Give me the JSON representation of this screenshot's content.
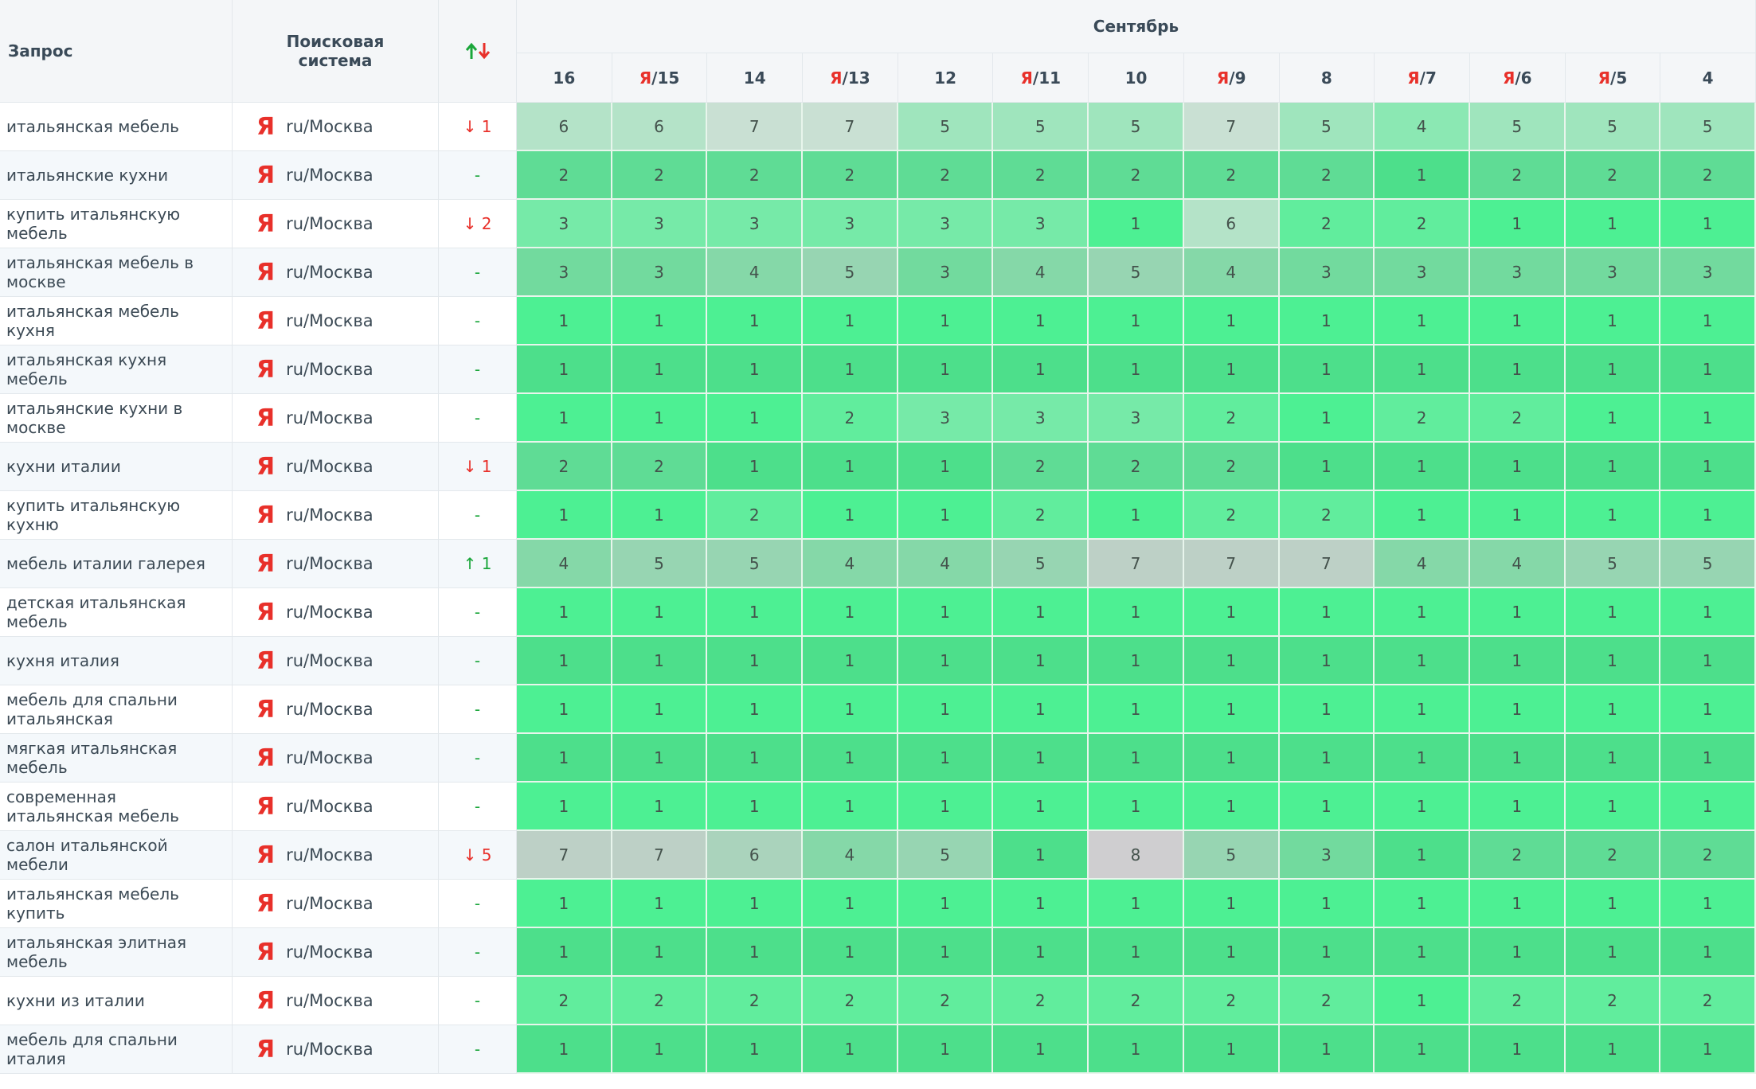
{
  "header": {
    "query": "Запрос",
    "engine": "Поисковая система",
    "month": "Сентябрь",
    "columns": [
      {
        "label": "16"
      },
      {
        "prefix": "Я",
        "label": "/15"
      },
      {
        "label": "14"
      },
      {
        "prefix": "Я",
        "label": "/13"
      },
      {
        "label": "12"
      },
      {
        "prefix": "Я",
        "label": "/11"
      },
      {
        "label": "10"
      },
      {
        "prefix": "Я",
        "label": "/9"
      },
      {
        "label": "8"
      },
      {
        "prefix": "Я",
        "label": "/7"
      },
      {
        "prefix": "Я",
        "label": "/6"
      },
      {
        "prefix": "Я",
        "label": "/5"
      },
      {
        "label": "4"
      }
    ]
  },
  "table": {
    "rows": [
      {
        "query": "итальянская мебель",
        "icon": "Я",
        "region": "ru/Москва",
        "change": "↓ 1",
        "values": [
          6,
          6,
          7,
          7,
          5,
          5,
          5,
          7,
          5,
          4,
          5,
          5,
          5
        ]
      },
      {
        "query": "итальянские кухни",
        "icon": "Я",
        "region": "ru/Москва",
        "change": "-",
        "values": [
          2,
          2,
          2,
          2,
          2,
          2,
          2,
          2,
          2,
          1,
          2,
          2,
          2
        ]
      },
      {
        "query": "купить итальянскую мебель",
        "icon": "Я",
        "region": "ru/Москва",
        "change": "↓ 2",
        "values": [
          3,
          3,
          3,
          3,
          3,
          3,
          1,
          6,
          2,
          2,
          1,
          1,
          1
        ]
      },
      {
        "query": "итальянская мебель в москве",
        "icon": "Я",
        "region": "ru/Москва",
        "change": "-",
        "values": [
          3,
          3,
          4,
          5,
          3,
          4,
          5,
          4,
          3,
          3,
          3,
          3,
          3
        ]
      },
      {
        "query": "итальянская мебель кухня",
        "icon": "Я",
        "region": "ru/Москва",
        "change": "-",
        "values": [
          1,
          1,
          1,
          1,
          1,
          1,
          1,
          1,
          1,
          1,
          1,
          1,
          1
        ]
      },
      {
        "query": "итальянская кухня мебель",
        "icon": "Я",
        "region": "ru/Москва",
        "change": "-",
        "values": [
          1,
          1,
          1,
          1,
          1,
          1,
          1,
          1,
          1,
          1,
          1,
          1,
          1
        ]
      },
      {
        "query": "итальянские кухни в москве",
        "icon": "Я",
        "region": "ru/Москва",
        "change": "-",
        "values": [
          1,
          1,
          1,
          2,
          3,
          3,
          3,
          2,
          1,
          2,
          2,
          1,
          1
        ]
      },
      {
        "query": "кухни италии",
        "icon": "Я",
        "region": "ru/Москва",
        "change": "↓ 1",
        "values": [
          2,
          2,
          1,
          1,
          1,
          2,
          2,
          2,
          1,
          1,
          1,
          1,
          1
        ]
      },
      {
        "query": "купить итальянскую кухню",
        "icon": "Я",
        "region": "ru/Москва",
        "change": "-",
        "values": [
          1,
          1,
          2,
          1,
          1,
          2,
          1,
          2,
          2,
          1,
          1,
          1,
          1
        ]
      },
      {
        "query": "мебель италии галерея",
        "icon": "Я",
        "region": "ru/Москва",
        "change": "↑ 1",
        "values": [
          4,
          5,
          5,
          4,
          4,
          5,
          7,
          7,
          7,
          4,
          4,
          5,
          5
        ]
      },
      {
        "query": "детская итальянская мебель",
        "icon": "Я",
        "region": "ru/Москва",
        "change": "-",
        "values": [
          1,
          1,
          1,
          1,
          1,
          1,
          1,
          1,
          1,
          1,
          1,
          1,
          1
        ]
      },
      {
        "query": "кухня италия",
        "icon": "Я",
        "region": "ru/Москва",
        "change": "-",
        "values": [
          1,
          1,
          1,
          1,
          1,
          1,
          1,
          1,
          1,
          1,
          1,
          1,
          1
        ]
      },
      {
        "query": "мебель для спальни итальянская",
        "icon": "Я",
        "region": "ru/Москва",
        "change": "-",
        "values": [
          1,
          1,
          1,
          1,
          1,
          1,
          1,
          1,
          1,
          1,
          1,
          1,
          1
        ]
      },
      {
        "query": "мягкая итальянская мебель",
        "icon": "Я",
        "region": "ru/Москва",
        "change": "-",
        "values": [
          1,
          1,
          1,
          1,
          1,
          1,
          1,
          1,
          1,
          1,
          1,
          1,
          1
        ]
      },
      {
        "query": "современная итальянская мебель",
        "icon": "Я",
        "region": "ru/Москва",
        "change": "-",
        "values": [
          1,
          1,
          1,
          1,
          1,
          1,
          1,
          1,
          1,
          1,
          1,
          1,
          1
        ]
      },
      {
        "query": "салон итальянской мебели",
        "icon": "Я",
        "region": "ru/Москва",
        "change": "↓ 5",
        "values": [
          7,
          7,
          6,
          4,
          5,
          1,
          8,
          5,
          3,
          1,
          2,
          2,
          2
        ]
      },
      {
        "query": "итальянская мебель купить",
        "icon": "Я",
        "region": "ru/Москва",
        "change": "-",
        "values": [
          1,
          1,
          1,
          1,
          1,
          1,
          1,
          1,
          1,
          1,
          1,
          1,
          1
        ]
      },
      {
        "query": "итальянская элитная мебель",
        "icon": "Я",
        "region": "ru/Москва",
        "change": "-",
        "values": [
          1,
          1,
          1,
          1,
          1,
          1,
          1,
          1,
          1,
          1,
          1,
          1,
          1
        ]
      },
      {
        "query": "кухни из италии",
        "icon": "Я",
        "region": "ru/Москва",
        "change": "-",
        "values": [
          2,
          2,
          2,
          2,
          2,
          2,
          2,
          2,
          2,
          1,
          2,
          2,
          2
        ]
      },
      {
        "query": "мебель для спальни италия",
        "icon": "Я",
        "region": "ru/Москва",
        "change": "-",
        "values": [
          1,
          1,
          1,
          1,
          1,
          1,
          1,
          1,
          1,
          1,
          1,
          1,
          1
        ]
      }
    ]
  }
}
